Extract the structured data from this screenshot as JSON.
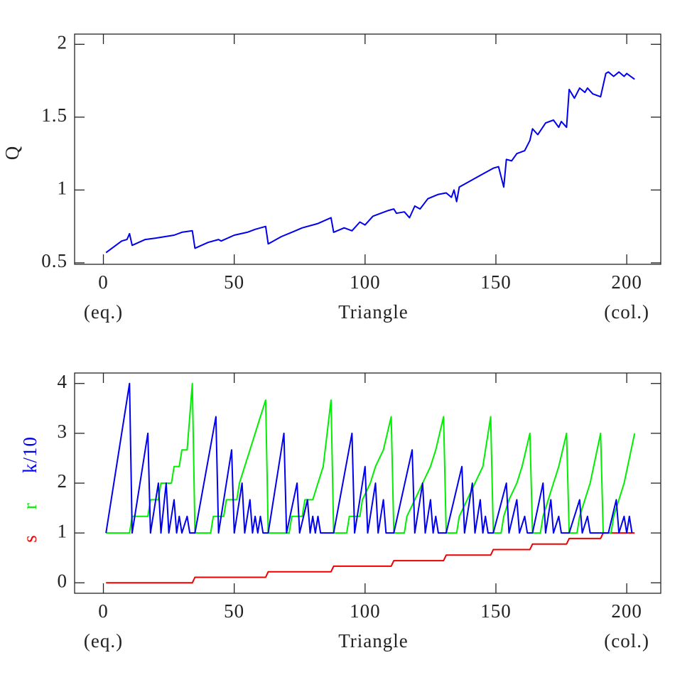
{
  "chart_data": [
    {
      "type": "line",
      "ylabel": "Q",
      "xlabel": "Triangle",
      "x_end_labels": [
        "(eq.)",
        "(col.)"
      ],
      "xlim": [
        -11,
        213
      ],
      "ylim": [
        0.49,
        2.07
      ],
      "xticks": [
        0,
        50,
        100,
        150,
        200
      ],
      "yticks": [
        0.5,
        1,
        1.5,
        2
      ],
      "series": [
        {
          "name": "Q",
          "color": "#0000ee",
          "x": [
            1,
            7,
            9,
            10,
            11,
            16,
            20,
            27,
            30,
            34,
            35,
            40,
            44,
            45,
            50,
            55,
            58,
            62,
            63,
            68,
            72,
            76,
            82,
            87,
            88,
            92,
            95,
            98,
            100,
            103,
            106,
            109,
            111,
            112,
            115,
            117,
            119,
            121,
            124,
            128,
            131,
            133,
            134,
            135,
            136,
            140,
            144,
            149,
            151,
            153,
            154,
            156,
            158,
            161,
            163,
            164,
            166,
            169,
            172,
            174,
            175,
            177,
            178,
            180,
            182,
            184,
            185,
            187,
            190,
            192,
            193,
            195,
            197,
            199,
            200,
            203
          ],
          "values": [
            0.57,
            0.65,
            0.66,
            0.7,
            0.62,
            0.66,
            0.67,
            0.69,
            0.71,
            0.72,
            0.6,
            0.64,
            0.66,
            0.65,
            0.69,
            0.71,
            0.73,
            0.75,
            0.63,
            0.68,
            0.71,
            0.74,
            0.77,
            0.81,
            0.71,
            0.74,
            0.72,
            0.78,
            0.76,
            0.82,
            0.84,
            0.86,
            0.87,
            0.84,
            0.85,
            0.81,
            0.89,
            0.87,
            0.94,
            0.97,
            0.98,
            0.95,
            1.0,
            0.92,
            1.02,
            1.06,
            1.1,
            1.15,
            1.16,
            1.02,
            1.21,
            1.2,
            1.25,
            1.27,
            1.34,
            1.42,
            1.38,
            1.46,
            1.48,
            1.43,
            1.47,
            1.43,
            1.69,
            1.63,
            1.7,
            1.67,
            1.7,
            1.66,
            1.64,
            1.8,
            1.81,
            1.78,
            1.81,
            1.78,
            1.8,
            1.76
          ]
        }
      ]
    },
    {
      "type": "line",
      "xlabel": "Triangle",
      "x_end_labels": [
        "(eq.)",
        "(col.)"
      ],
      "xlim": [
        -11,
        213
      ],
      "ylim": [
        -0.21,
        4.21
      ],
      "xticks": [
        0,
        50,
        100,
        150,
        200
      ],
      "yticks": [
        0,
        1,
        2,
        3,
        4
      ],
      "series": [
        {
          "name": "s",
          "color": "#ee0000",
          "x": [
            1,
            34,
            35,
            62,
            63,
            87,
            88,
            110,
            111,
            130,
            131,
            148,
            149,
            163,
            164,
            177,
            178,
            190,
            191,
            203
          ],
          "values": [
            0,
            0,
            0.111,
            0.111,
            0.222,
            0.222,
            0.333,
            0.333,
            0.444,
            0.444,
            0.556,
            0.556,
            0.667,
            0.667,
            0.778,
            0.778,
            0.889,
            0.889,
            1,
            1
          ]
        },
        {
          "name": "r",
          "color": "#00ee00",
          "x": [
            1,
            10,
            11,
            17,
            18,
            21,
            22,
            26,
            27,
            29,
            30,
            32,
            34,
            35,
            41,
            42,
            46,
            47,
            51,
            52,
            54,
            56,
            58,
            62,
            63,
            71,
            72,
            76,
            77,
            80,
            82,
            84,
            87,
            88,
            93,
            94,
            98,
            99,
            102,
            104,
            107,
            110,
            111,
            115,
            116,
            119,
            122,
            125,
            127,
            130,
            131,
            135,
            136,
            139,
            142,
            145,
            148,
            149,
            152,
            153,
            155,
            158,
            160,
            163,
            164,
            167,
            168,
            170,
            172,
            174,
            177,
            178,
            181,
            182,
            184,
            186,
            190,
            191,
            194,
            195,
            197,
            199,
            203
          ],
          "values": [
            1,
            1,
            1.333,
            1.333,
            1.667,
            1.667,
            2,
            2,
            2.333,
            2.333,
            2.667,
            2.667,
            4,
            1,
            1,
            1.333,
            1.333,
            1.667,
            1.667,
            2,
            2.333,
            2.667,
            3,
            3.667,
            1,
            1,
            1.333,
            1.333,
            1.667,
            1.667,
            2,
            2.333,
            3.667,
            1,
            1,
            1.333,
            1.333,
            1.667,
            2,
            2.333,
            2.667,
            3.333,
            1,
            1,
            1.333,
            1.667,
            2,
            2.333,
            2.667,
            3.333,
            1,
            1,
            1.333,
            1.667,
            2,
            2.333,
            3.333,
            1,
            1,
            1.333,
            1.667,
            2,
            2.333,
            3,
            1,
            1,
            1.333,
            1.667,
            2,
            2.333,
            3,
            1,
            1,
            1.333,
            1.667,
            2,
            3,
            1,
            1,
            1.333,
            1.667,
            2,
            3
          ]
        },
        {
          "name": "k/10",
          "color": "#0000ee",
          "x": [
            1,
            10,
            11,
            17,
            18,
            21,
            22,
            24,
            25,
            27,
            28,
            29,
            30,
            32,
            33,
            35,
            43,
            44,
            49,
            50,
            53,
            54,
            56,
            57,
            58,
            59,
            60,
            61,
            63,
            69,
            70,
            74,
            75,
            78,
            79,
            80,
            81,
            82,
            83,
            88,
            95,
            96,
            100,
            101,
            104,
            105,
            107,
            108,
            111,
            118,
            119,
            122,
            123,
            125,
            126,
            127,
            128,
            131,
            137,
            138,
            141,
            142,
            144,
            145,
            146,
            147,
            149,
            154,
            155,
            158,
            159,
            161,
            162,
            164,
            168,
            169,
            171,
            172,
            174,
            175,
            178,
            182,
            183,
            185,
            186,
            191,
            193,
            196,
            197,
            199,
            200,
            201,
            202
          ],
          "values": [
            1,
            4,
            1,
            3,
            1,
            2,
            1,
            2,
            1,
            1.667,
            1,
            1.333,
            1,
            1.333,
            1,
            1,
            3.333,
            1,
            2.667,
            1,
            2,
            1,
            1.667,
            1,
            1.333,
            1,
            1.333,
            1,
            1,
            3,
            1,
            2,
            1,
            1.667,
            1,
            1.333,
            1,
            1.333,
            1,
            1,
            3,
            1,
            2.333,
            1,
            2,
            1,
            1.667,
            1,
            1,
            2.667,
            1,
            2,
            1,
            1.667,
            1,
            1.333,
            1,
            1,
            2.333,
            1,
            2,
            1,
            1.667,
            1,
            1.333,
            1,
            1,
            2,
            1,
            1.667,
            1,
            1.333,
            1,
            1,
            2,
            1,
            1.667,
            1,
            1.333,
            1,
            1,
            1.667,
            1,
            1.333,
            1,
            1,
            1,
            1.667,
            1,
            1.333,
            1,
            1.333,
            1
          ]
        }
      ]
    }
  ]
}
